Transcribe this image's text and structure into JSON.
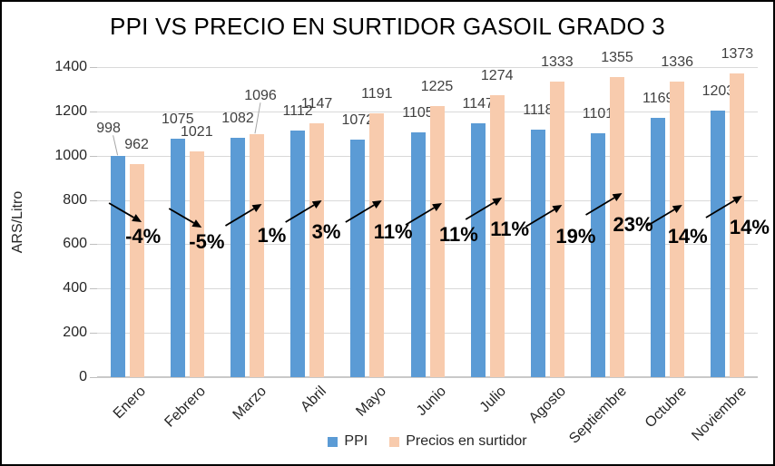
{
  "chart_data": {
    "type": "bar",
    "title": "PPI VS PRECIO EN SURTIDOR GASOIL GRADO 3",
    "xlabel": "",
    "ylabel": "ARS/Litro",
    "categories": [
      "Enero",
      "Febrero",
      "Marzo",
      "Abril",
      "Mayo",
      "Junio",
      "Julio",
      "Agosto",
      "Septiembre",
      "Octubre",
      "Noviembre"
    ],
    "series": [
      {
        "name": "PPI",
        "color": "#5B9BD5",
        "values": [
          998,
          1075,
          1082,
          1112,
          1072,
          1105,
          1147,
          1118,
          1101,
          1169,
          1203
        ]
      },
      {
        "name": "Precios en surtidor",
        "color": "#F8CBAD",
        "values": [
          962,
          1021,
          1096,
          1147,
          1191,
          1225,
          1274,
          1333,
          1355,
          1336,
          1373
        ]
      }
    ],
    "pct_change_labels": [
      "-4%",
      "-5%",
      "1%",
      "3%",
      "11%",
      "11%",
      "11%",
      "19%",
      "23%",
      "14%",
      "14%"
    ],
    "pct_change_directions": [
      "down",
      "down",
      "up",
      "up",
      "up",
      "up",
      "up",
      "up",
      "up",
      "up",
      "up"
    ],
    "ylim": [
      0,
      1400
    ],
    "ytick_step": 200,
    "grid": true,
    "legend_position": "bottom",
    "colors": {
      "gridline": "#D9D9D9",
      "axis_line": "#C9C9C9",
      "data_label": "#404040",
      "arrow": "#000000",
      "leader_line": "#A6A6A6"
    }
  }
}
